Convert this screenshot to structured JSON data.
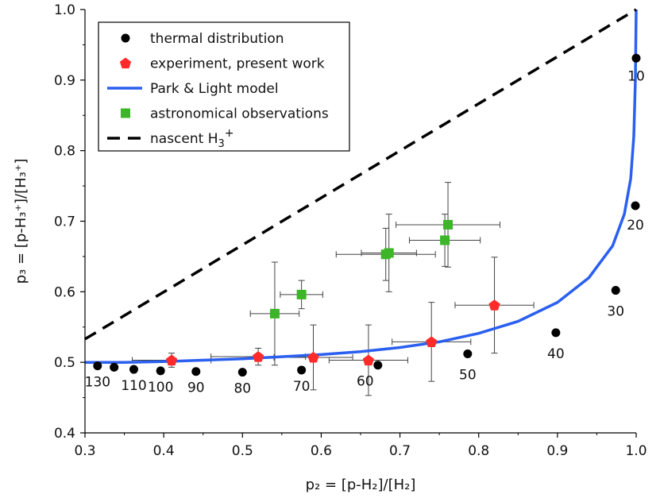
{
  "chart_data": {
    "type": "scatter",
    "xlabel": "p₂ = [p-H₂]/[H₂]",
    "ylabel": "p₃ = [p-H₃⁺]/[H₃⁺]",
    "xlim": [
      0.3,
      1.0
    ],
    "ylim": [
      0.4,
      1.0
    ],
    "x_ticks": [
      0.3,
      0.4,
      0.5,
      0.6,
      0.7,
      0.8,
      0.9,
      1.0
    ],
    "y_ticks": [
      0.4,
      0.5,
      0.6,
      0.7,
      0.8,
      0.9,
      1.0
    ],
    "x_tick_labels": [
      "0.3",
      "0.4",
      "0.5",
      "0.6",
      "0.7",
      "0.8",
      "0.9",
      "1.0"
    ],
    "y_tick_labels": [
      "0.4",
      "0.5",
      "0.6",
      "0.7",
      "0.8",
      "0.9",
      "1.0"
    ],
    "series": [
      {
        "name": "thermal distribution",
        "marker": "circle",
        "color": "#000000",
        "points": [
          {
            "x": 0.316,
            "y": 0.495,
            "label": "130"
          },
          {
            "x": 0.337,
            "y": 0.493,
            "label": ""
          },
          {
            "x": 0.362,
            "y": 0.49,
            "label": "110"
          },
          {
            "x": 0.396,
            "y": 0.488,
            "label": "100"
          },
          {
            "x": 0.441,
            "y": 0.487,
            "label": "90"
          },
          {
            "x": 0.5,
            "y": 0.486,
            "label": "80"
          },
          {
            "x": 0.575,
            "y": 0.489,
            "label": "70"
          },
          {
            "x": 0.672,
            "y": 0.496,
            "label": "60"
          },
          {
            "x": 0.786,
            "y": 0.512,
            "label": "50"
          },
          {
            "x": 0.898,
            "y": 0.542,
            "label": "40"
          },
          {
            "x": 0.974,
            "y": 0.602,
            "label": "30"
          },
          {
            "x": 0.999,
            "y": 0.722,
            "label": "20"
          },
          {
            "x": 1.0,
            "y": 0.931,
            "label": "10"
          }
        ]
      },
      {
        "name": "experiment, present work",
        "marker": "pentagon",
        "color": "#ff2a2a",
        "points": [
          {
            "x": 0.41,
            "y": 0.503,
            "xerr": 0.05,
            "yerr": 0.01
          },
          {
            "x": 0.52,
            "y": 0.508,
            "xerr": 0.06,
            "yerr": 0.012
          },
          {
            "x": 0.59,
            "y": 0.507,
            "xerr": 0.05,
            "yerr": 0.046
          },
          {
            "x": 0.66,
            "y": 0.503,
            "xerr": 0.05,
            "yerr": 0.05
          },
          {
            "x": 0.74,
            "y": 0.529,
            "xerr": 0.05,
            "yerr": 0.056
          },
          {
            "x": 0.82,
            "y": 0.581,
            "xerr": 0.05,
            "yerr": 0.068
          }
        ]
      },
      {
        "name": "Park & Light model",
        "marker": "line",
        "color": "#2a5ff0",
        "points": [
          {
            "x": 0.3,
            "y": 0.5
          },
          {
            "x": 0.35,
            "y": 0.5
          },
          {
            "x": 0.4,
            "y": 0.501
          },
          {
            "x": 0.45,
            "y": 0.503
          },
          {
            "x": 0.5,
            "y": 0.505
          },
          {
            "x": 0.55,
            "y": 0.508
          },
          {
            "x": 0.6,
            "y": 0.511
          },
          {
            "x": 0.65,
            "y": 0.515
          },
          {
            "x": 0.7,
            "y": 0.521
          },
          {
            "x": 0.75,
            "y": 0.529
          },
          {
            "x": 0.8,
            "y": 0.541
          },
          {
            "x": 0.85,
            "y": 0.558
          },
          {
            "x": 0.9,
            "y": 0.585
          },
          {
            "x": 0.94,
            "y": 0.62
          },
          {
            "x": 0.97,
            "y": 0.665
          },
          {
            "x": 0.985,
            "y": 0.71
          },
          {
            "x": 0.993,
            "y": 0.76
          },
          {
            "x": 0.997,
            "y": 0.82
          },
          {
            "x": 0.999,
            "y": 0.9
          },
          {
            "x": 1.0,
            "y": 1.0
          }
        ]
      },
      {
        "name": "astronomical observations",
        "marker": "square",
        "color": "#3cb528",
        "points": [
          {
            "x": 0.541,
            "y": 0.569,
            "xerr": 0.031,
            "yerr": 0.073
          },
          {
            "x": 0.575,
            "y": 0.596,
            "xerr": 0.027,
            "yerr": 0.02
          },
          {
            "x": 0.682,
            "y": 0.653,
            "xerr": 0.063,
            "yerr": 0.037
          },
          {
            "x": 0.686,
            "y": 0.655,
            "xerr": 0.035,
            "yerr": 0.055
          },
          {
            "x": 0.757,
            "y": 0.673,
            "xerr": 0.045,
            "yerr": 0.037
          },
          {
            "x": 0.761,
            "y": 0.695,
            "xerr": 0.066,
            "yerr": 0.06
          }
        ]
      },
      {
        "name": "nascent H₃⁺",
        "marker": "dashed-line",
        "color": "#000000",
        "points": [
          {
            "x": 0.3,
            "y": 0.533
          },
          {
            "x": 1.0,
            "y": 1.0
          }
        ]
      }
    ],
    "legend_placement": "top-left",
    "legend": [
      {
        "label": "thermal distribution",
        "symbol": "circle",
        "color": "#000000"
      },
      {
        "label": "experiment, present work",
        "symbol": "pentagon",
        "color": "#ff2a2a"
      },
      {
        "label": "Park & Light model",
        "symbol": "line",
        "color": "#2a5ff0"
      },
      {
        "label": "astronomical observations",
        "symbol": "square",
        "color": "#3cb528"
      },
      {
        "label": "nascent H",
        "sub": "3",
        "sup": "+",
        "symbol": "dashed-line",
        "color": "#000000"
      }
    ],
    "grid": false
  }
}
